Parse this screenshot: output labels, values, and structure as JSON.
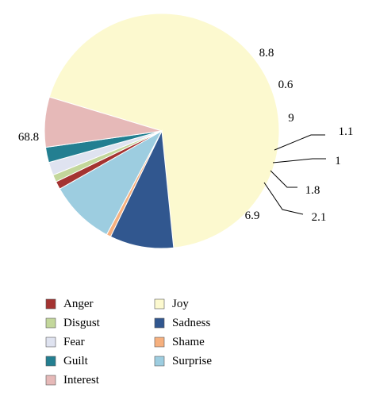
{
  "chart_data": {
    "type": "pie",
    "slices": [
      {
        "name": "Joy",
        "value": 68.8,
        "label": "68.8",
        "color": "#fcf9cf"
      },
      {
        "name": "Sadness",
        "value": 8.8,
        "label": "8.8",
        "color": "#31578f"
      },
      {
        "name": "Shame",
        "value": 0.6,
        "label": "0.6",
        "color": "#f6b07e"
      },
      {
        "name": "Surprise",
        "value": 9,
        "label": "9",
        "color": "#9dcde0"
      },
      {
        "name": "Anger",
        "value": 1.1,
        "label": "1.1",
        "color": "#a43331"
      },
      {
        "name": "Disgust",
        "value": 1,
        "label": "1",
        "color": "#c3d79b"
      },
      {
        "name": "Fear",
        "value": 1.8,
        "label": "1.8",
        "color": "#dfe3f0"
      },
      {
        "name": "Guilt",
        "value": 2.1,
        "label": "2.1",
        "color": "#237f91"
      },
      {
        "name": "Interest",
        "value": 6.9,
        "label": "6.9",
        "color": "#e6b9b8"
      }
    ],
    "legend": {
      "placement": "bottom",
      "columns": [
        [
          "Anger",
          "Disgust",
          "Fear",
          "Guilt",
          "Interest"
        ],
        [
          "Joy",
          "Sadness",
          "Shame",
          "Surprise"
        ]
      ]
    }
  }
}
